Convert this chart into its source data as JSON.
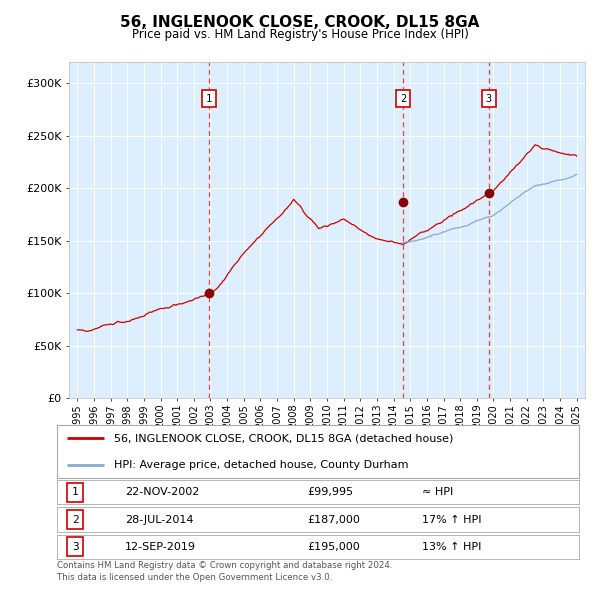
{
  "title": "56, INGLENOOK CLOSE, CROOK, DL15 8GA",
  "subtitle": "Price paid vs. HM Land Registry's House Price Index (HPI)",
  "legend_line1": "56, INGLENOOK CLOSE, CROOK, DL15 8GA (detached house)",
  "legend_line2": "HPI: Average price, detached house, County Durham",
  "footnote1": "Contains HM Land Registry data © Crown copyright and database right 2024.",
  "footnote2": "This data is licensed under the Open Government Licence v3.0.",
  "sale_points": [
    {
      "num": 1,
      "date": "22-NOV-2002",
      "price": "£99,995",
      "hpi_text": "≈ HPI",
      "x_year": 2002.9,
      "y_val": 99995
    },
    {
      "num": 2,
      "date": "28-JUL-2014",
      "price": "£187,000",
      "hpi_text": "17% ↑ HPI",
      "x_year": 2014.58,
      "y_val": 187000
    },
    {
      "num": 3,
      "date": "12-SEP-2019",
      "price": "£195,000",
      "hpi_text": "13% ↑ HPI",
      "x_year": 2019.72,
      "y_val": 195000
    }
  ],
  "red_line_color": "#cc0000",
  "blue_line_color": "#88aacc",
  "bg_color": "#ddeeff",
  "grid_color": "#ffffff",
  "vline_color": "#dd4444",
  "dot_color": "#880000",
  "ylim": [
    0,
    320000
  ],
  "xlim_start": 1994.5,
  "xlim_end": 2025.5,
  "yticks": [
    0,
    50000,
    100000,
    150000,
    200000,
    250000,
    300000
  ]
}
